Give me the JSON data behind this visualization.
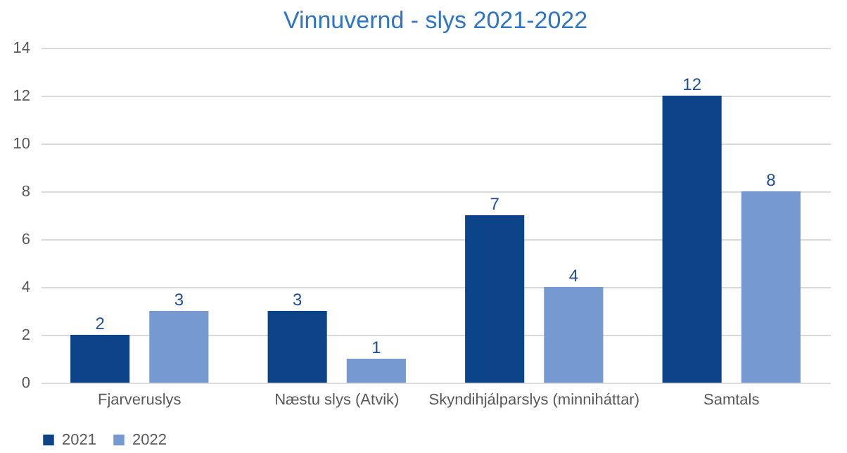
{
  "chart_data": {
    "type": "bar",
    "title": "Vinnuvernd - slys 2021-2022",
    "categories": [
      "Fjarveruslys",
      "Næstu slys (Atvik)",
      "Skyndihjálparslys (minniháttar)",
      "Samtals"
    ],
    "series": [
      {
        "name": "2021",
        "color": "#0d4489",
        "values": [
          2,
          3,
          7,
          12
        ]
      },
      {
        "name": "2022",
        "color": "#7799d1",
        "values": [
          3,
          1,
          4,
          8
        ]
      }
    ],
    "ylim": [
      0,
      14
    ],
    "yticks": [
      0,
      2,
      4,
      6,
      8,
      10,
      12,
      14
    ],
    "grid": "y",
    "legend": "bottom",
    "data_labels": true
  }
}
